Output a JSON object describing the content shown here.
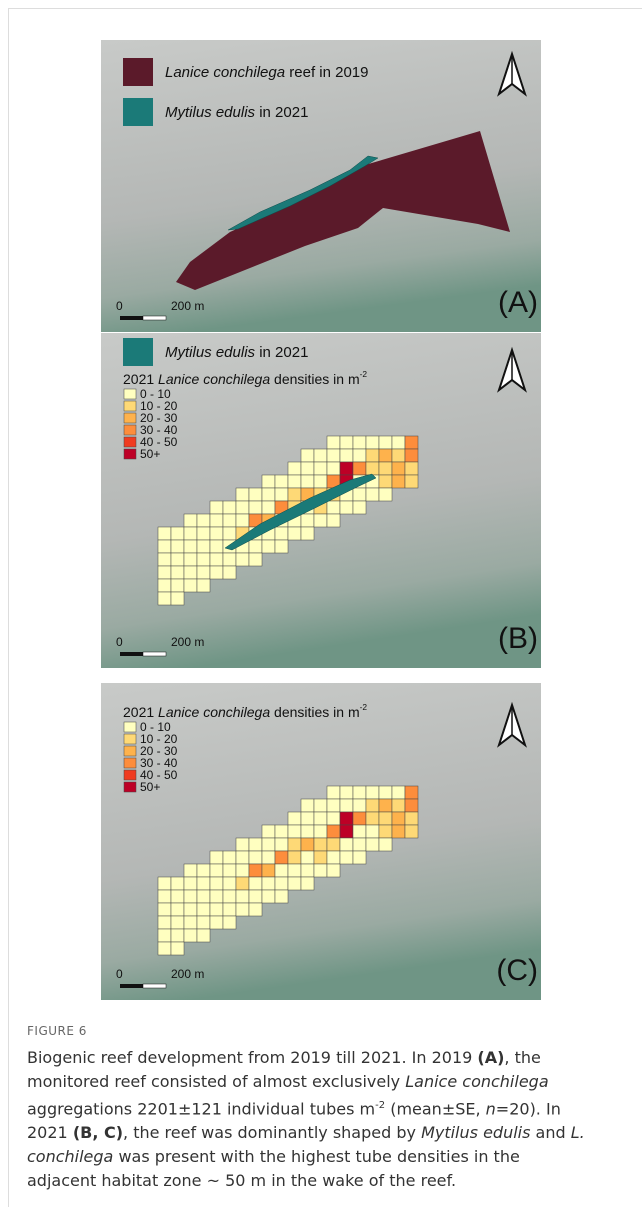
{
  "figure": {
    "panels": [
      {
        "legend": [
          {
            "color": "#5b1a2a",
            "segments": [
              {
                "text": "Lanice conchilega",
                "style": "i"
              },
              {
                "text": " reef in 2019",
                "style": "n"
              }
            ]
          },
          {
            "color": "#1b7a78",
            "segments": [
              {
                "text": "Mytilus edulis",
                "style": "i"
              },
              {
                "text": " in 2021",
                "style": "n"
              }
            ]
          }
        ],
        "scale_zero": "0",
        "scale_label": "200 m",
        "panel_label": "(A)"
      },
      {
        "legend": [
          {
            "color": "#1b7a78",
            "segments": [
              {
                "text": "Mytilus edulis",
                "style": "i"
              },
              {
                "text": " in 2021",
                "style": "n"
              }
            ]
          }
        ],
        "density_title": [
          {
            "text": "2021 ",
            "style": "n"
          },
          {
            "text": "Lanice conchilega",
            "style": "i"
          },
          {
            "text": " densities in m",
            "style": "n"
          },
          {
            "text": "-2",
            "style": "sup"
          }
        ],
        "density_classes": [
          {
            "label": "0 - 10",
            "color": "#ffffc0"
          },
          {
            "label": "10 - 20",
            "color": "#fed976"
          },
          {
            "label": "20 - 30",
            "color": "#feb24c"
          },
          {
            "label": "30 - 40",
            "color": "#fd8d3c"
          },
          {
            "label": "40 - 50",
            "color": "#f03b20"
          },
          {
            "label": "50+",
            "color": "#bd0026"
          }
        ],
        "scale_zero": "0",
        "scale_label": "200 m",
        "panel_label": "(B)"
      },
      {
        "density_title": [
          {
            "text": "2021 ",
            "style": "n"
          },
          {
            "text": "Lanice conchilega",
            "style": "i"
          },
          {
            "text": " densities in m",
            "style": "n"
          },
          {
            "text": "-2",
            "style": "sup"
          }
        ],
        "density_classes": [
          {
            "label": "0 - 10",
            "color": "#ffffc0"
          },
          {
            "label": "10 - 20",
            "color": "#fed976"
          },
          {
            "label": "20 - 30",
            "color": "#feb24c"
          },
          {
            "label": "30 - 40",
            "color": "#fd8d3c"
          },
          {
            "label": "40 - 50",
            "color": "#f03b20"
          },
          {
            "label": "50+",
            "color": "#bd0026"
          }
        ],
        "scale_zero": "0",
        "scale_label": "200 m",
        "panel_label": "(C)"
      }
    ]
  },
  "caption": {
    "label": "FIGURE 6",
    "lines": [
      [
        {
          "text": "Biogenic reef development from 2019 till 2021. In 2019 ",
          "style": "n"
        },
        {
          "text": "(A)",
          "style": "b"
        },
        {
          "text": ", the",
          "style": "n"
        }
      ],
      [
        {
          "text": "monitored reef consisted of almost exclusively ",
          "style": "n"
        },
        {
          "text": "Lanice conchilega",
          "style": "i"
        }
      ],
      [
        {
          "text": "aggregations 2201±121 individual tubes m",
          "style": "n"
        },
        {
          "text": "-2",
          "style": "sup"
        },
        {
          "text": " (mean±SE, ",
          "style": "n"
        },
        {
          "text": "n",
          "style": "i"
        },
        {
          "text": "=20). In",
          "style": "n"
        }
      ],
      [
        {
          "text": "2021 ",
          "style": "n"
        },
        {
          "text": "(B, C)",
          "style": "b"
        },
        {
          "text": ", the reef was dominantly shaped by ",
          "style": "n"
        },
        {
          "text": "Mytilus edulis",
          "style": "i"
        },
        {
          "text": " and ",
          "style": "n"
        },
        {
          "text": "L.",
          "style": "i"
        }
      ],
      [
        {
          "text": "conchilega",
          "style": "i"
        },
        {
          "text": " was present with the highest tube densities in the",
          "style": "n"
        }
      ],
      [
        {
          "text": "adjacent habitat zone ~ 50 m in the wake of the reef.",
          "style": "n"
        }
      ]
    ]
  }
}
